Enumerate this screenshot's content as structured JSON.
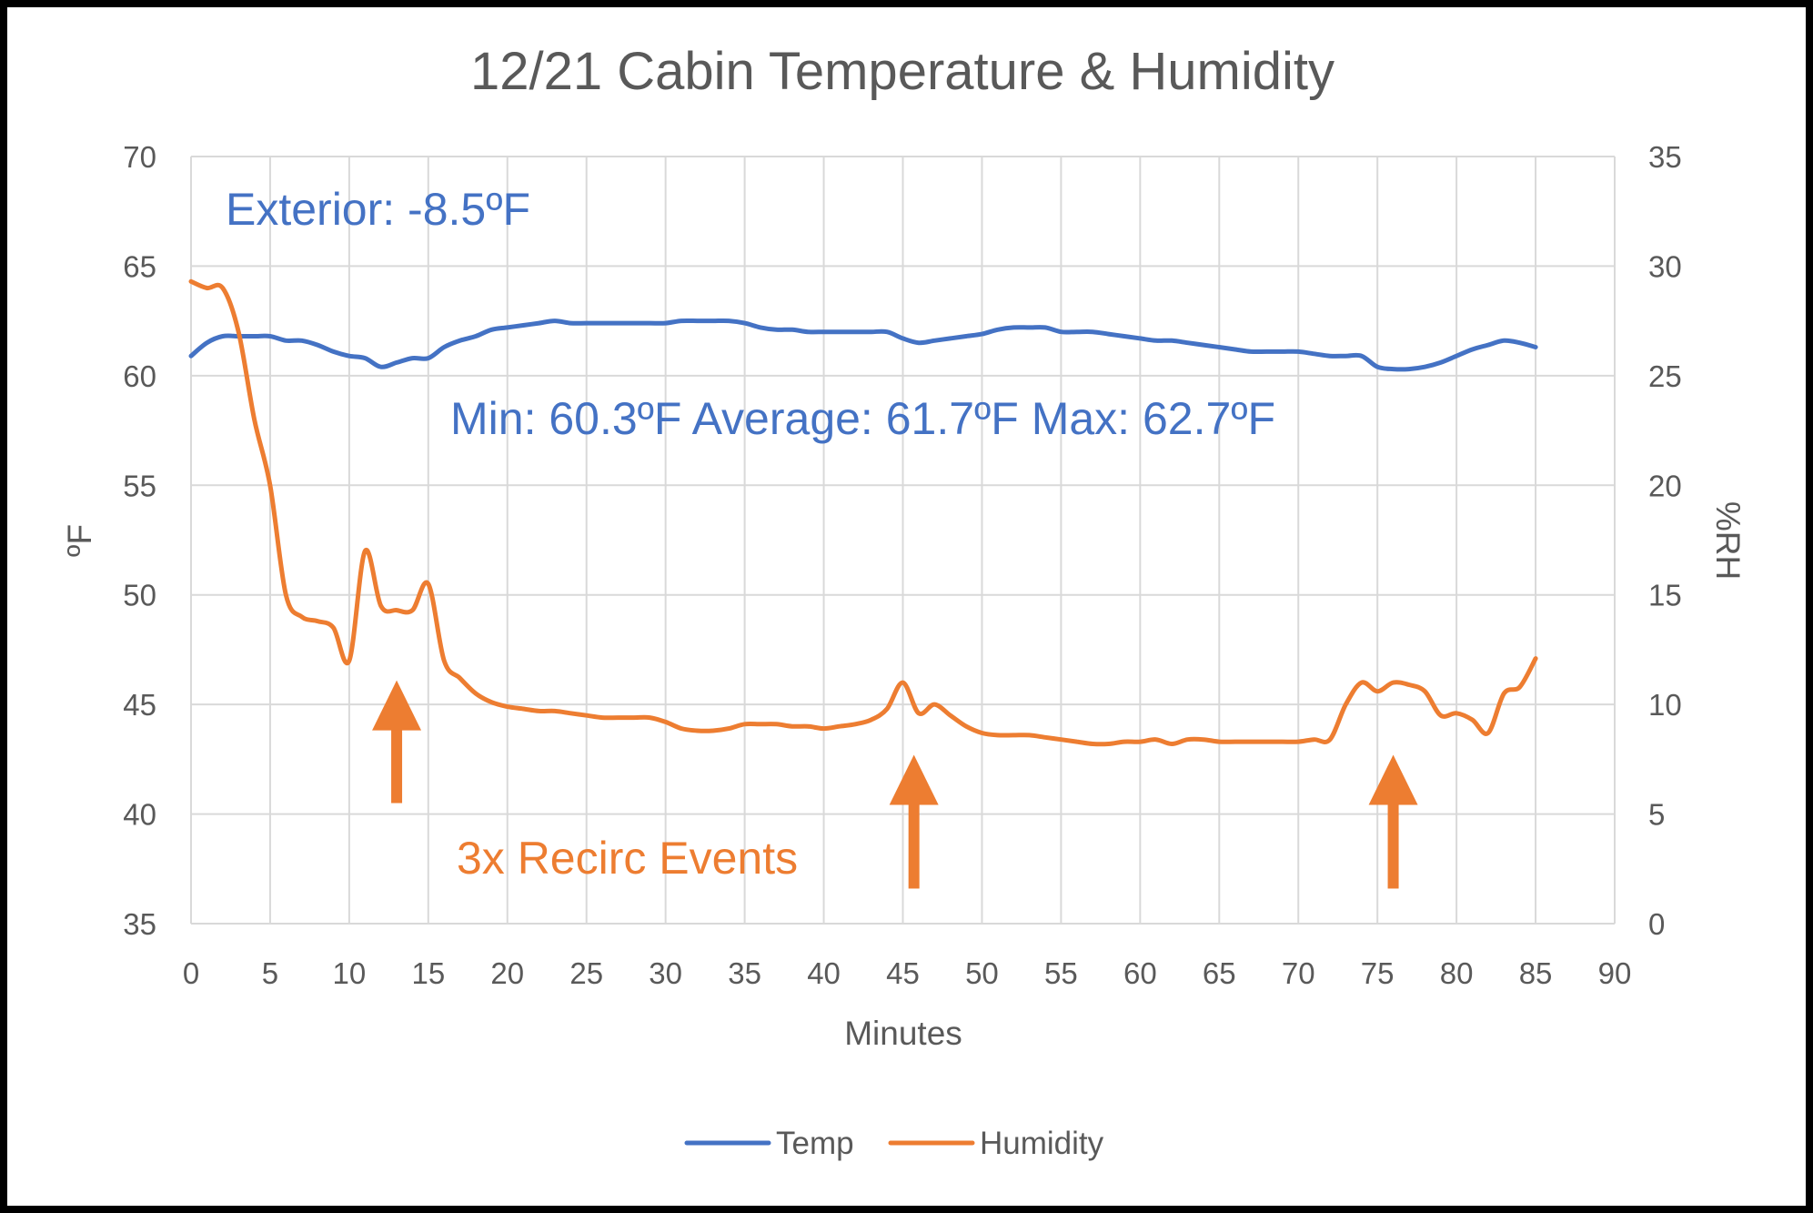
{
  "chart_data": {
    "type": "line",
    "title": "12/21 Cabin Temperature & Humidity",
    "xlabel": "Minutes",
    "ylabel": "ºF",
    "y2label": "%RH",
    "xlim": [
      0,
      90
    ],
    "xticks": [
      "0",
      "5",
      "10",
      "15",
      "20",
      "25",
      "30",
      "35",
      "40",
      "45",
      "50",
      "55",
      "60",
      "65",
      "70",
      "75",
      "80",
      "85",
      "90"
    ],
    "ylim": [
      35,
      70
    ],
    "yticks": [
      "35",
      "40",
      "45",
      "50",
      "55",
      "60",
      "65",
      "70"
    ],
    "y2lim": [
      0,
      35
    ],
    "y2ticks": [
      "0",
      "5",
      "10",
      "15",
      "20",
      "25",
      "30",
      "35"
    ],
    "grid": true,
    "legend_position": "bottom",
    "colors": {
      "temp": "#4472C4",
      "humidity": "#ED7D31",
      "text": "#595959",
      "grid": "#D9D9D9",
      "background": "#FFFFFF"
    },
    "series": [
      {
        "name": "Temp",
        "axis": "left",
        "color": "#4472C4",
        "x": [
          0,
          1,
          2,
          3,
          4,
          5,
          6,
          7,
          8,
          9,
          10,
          11,
          12,
          13,
          14,
          15,
          16,
          17,
          18,
          19,
          20,
          21,
          22,
          23,
          24,
          25,
          26,
          27,
          28,
          29,
          30,
          31,
          32,
          33,
          34,
          35,
          36,
          37,
          38,
          39,
          40,
          41,
          42,
          43,
          44,
          45,
          46,
          47,
          48,
          49,
          50,
          51,
          52,
          53,
          54,
          55,
          56,
          57,
          58,
          59,
          60,
          61,
          62,
          63,
          64,
          65,
          66,
          67,
          68,
          69,
          70,
          71,
          72,
          73,
          74,
          75,
          76,
          77,
          78,
          79,
          80,
          81,
          82,
          83,
          84,
          85
        ],
        "values": [
          60.9,
          61.5,
          61.8,
          61.8,
          61.8,
          61.8,
          61.6,
          61.6,
          61.4,
          61.1,
          60.9,
          60.8,
          60.4,
          60.6,
          60.8,
          60.8,
          61.3,
          61.6,
          61.8,
          62.1,
          62.2,
          62.3,
          62.4,
          62.5,
          62.4,
          62.4,
          62.4,
          62.4,
          62.4,
          62.4,
          62.4,
          62.5,
          62.5,
          62.5,
          62.5,
          62.4,
          62.2,
          62.1,
          62.1,
          62.0,
          62.0,
          62.0,
          62.0,
          62.0,
          62.0,
          61.7,
          61.5,
          61.6,
          61.7,
          61.8,
          61.9,
          62.1,
          62.2,
          62.2,
          62.2,
          62.0,
          62.0,
          62.0,
          61.9,
          61.8,
          61.7,
          61.6,
          61.6,
          61.5,
          61.4,
          61.3,
          61.2,
          61.1,
          61.1,
          61.1,
          61.1,
          61.0,
          60.9,
          60.9,
          60.9,
          60.4,
          60.3,
          60.3,
          60.4,
          60.6,
          60.9,
          61.2,
          61.4,
          61.6,
          61.5,
          61.3
        ]
      },
      {
        "name": "Humidity",
        "axis": "right",
        "color": "#ED7D31",
        "x": [
          0,
          1,
          2,
          3,
          4,
          5,
          6,
          7,
          8,
          9,
          10,
          11,
          12,
          13,
          14,
          15,
          16,
          17,
          18,
          19,
          20,
          21,
          22,
          23,
          24,
          25,
          26,
          27,
          28,
          29,
          30,
          31,
          32,
          33,
          34,
          35,
          36,
          37,
          38,
          39,
          40,
          41,
          42,
          43,
          44,
          45,
          46,
          47,
          48,
          49,
          50,
          51,
          52,
          53,
          54,
          55,
          56,
          57,
          58,
          59,
          60,
          61,
          62,
          63,
          64,
          65,
          66,
          67,
          68,
          69,
          70,
          71,
          72,
          73,
          74,
          75,
          76,
          77,
          78,
          79,
          80,
          81,
          82,
          83,
          84,
          85
        ],
        "values": [
          29.3,
          29.0,
          29.0,
          27.0,
          23.0,
          20.0,
          15.0,
          14.0,
          13.8,
          13.5,
          12.0,
          17.0,
          14.5,
          14.3,
          14.3,
          15.5,
          12.0,
          11.2,
          10.5,
          10.1,
          9.9,
          9.8,
          9.7,
          9.7,
          9.6,
          9.5,
          9.4,
          9.4,
          9.4,
          9.4,
          9.2,
          8.9,
          8.8,
          8.8,
          8.9,
          9.1,
          9.1,
          9.1,
          9.0,
          9.0,
          8.9,
          9.0,
          9.1,
          9.3,
          9.8,
          11.0,
          9.6,
          10.0,
          9.5,
          9.0,
          8.7,
          8.6,
          8.6,
          8.6,
          8.5,
          8.4,
          8.3,
          8.2,
          8.2,
          8.3,
          8.3,
          8.4,
          8.2,
          8.4,
          8.4,
          8.3,
          8.3,
          8.3,
          8.3,
          8.3,
          8.3,
          8.4,
          8.4,
          10.0,
          11.0,
          10.6,
          11.0,
          10.9,
          10.6,
          9.5,
          9.6,
          9.3,
          8.7,
          10.5,
          10.8,
          12.1
        ]
      }
    ],
    "annotations": [
      {
        "text": "Exterior: -8.5ºF",
        "color": "#4472C4"
      },
      {
        "text": "Min: 60.3ºF  Average: 61.7ºF  Max: 62.7ºF",
        "color": "#4472C4"
      },
      {
        "text": "3x Recirc Events",
        "color": "#ED7D31"
      }
    ],
    "arrows": [
      {
        "x": 13,
        "y_tail": 40.5,
        "y_head": 46.1
      },
      {
        "x": 45.7,
        "y_tail": 36.6,
        "y_head": 42.7
      },
      {
        "x": 76,
        "y_tail": 36.6,
        "y_head": 42.7
      }
    ]
  }
}
